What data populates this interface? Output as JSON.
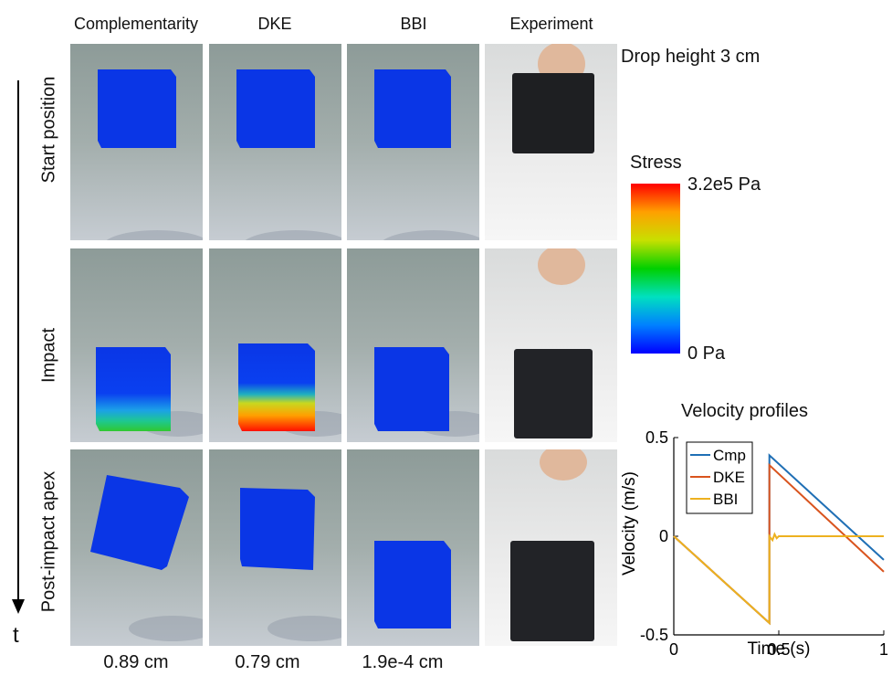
{
  "columns": [
    "Complementarity",
    "DKE",
    "BBI",
    "Experiment"
  ],
  "rows": [
    "Start position",
    "Impact",
    "Post-impact apex"
  ],
  "drop_height": "Drop height 3 cm",
  "time_axis_label": "t",
  "apex_heights": [
    "0.89 cm",
    "0.79 cm",
    "1.9e-4 cm"
  ],
  "colorbar": {
    "title": "Stress",
    "max_label": "3.2e5 Pa",
    "min_label": "0 Pa",
    "colors": [
      "#0000ff",
      "#0080ff",
      "#00e0c0",
      "#00d000",
      "#c8e000",
      "#ffa000",
      "#ff0000"
    ]
  },
  "chart_data": {
    "type": "line",
    "title": "Velocity profiles",
    "xlabel": "Time (s)",
    "ylabel": "Velocity (m/s)",
    "xlim": [
      0,
      1
    ],
    "ylim": [
      -0.5,
      0.5
    ],
    "xticks": [
      "0",
      "0.5",
      "1"
    ],
    "yticks": [
      "0.5",
      "0",
      "-0.5"
    ],
    "legend_position": "top-left",
    "series": [
      {
        "name": "Cmp",
        "color": "#1f6fb5",
        "x": [
          0,
          0.455,
          0.455,
          1.0
        ],
        "y": [
          0,
          -0.44,
          0.41,
          -0.12
        ]
      },
      {
        "name": "DKE",
        "color": "#d9541e",
        "x": [
          0,
          0.455,
          0.455,
          1.0
        ],
        "y": [
          0,
          -0.44,
          0.36,
          -0.18
        ]
      },
      {
        "name": "BBI",
        "color": "#edb120",
        "x": [
          0,
          0.455,
          0.455,
          0.47,
          0.48,
          0.49,
          0.5,
          1.0
        ],
        "y": [
          0,
          -0.44,
          0.0,
          -0.02,
          0.01,
          -0.01,
          0.0,
          0.0
        ]
      }
    ]
  }
}
